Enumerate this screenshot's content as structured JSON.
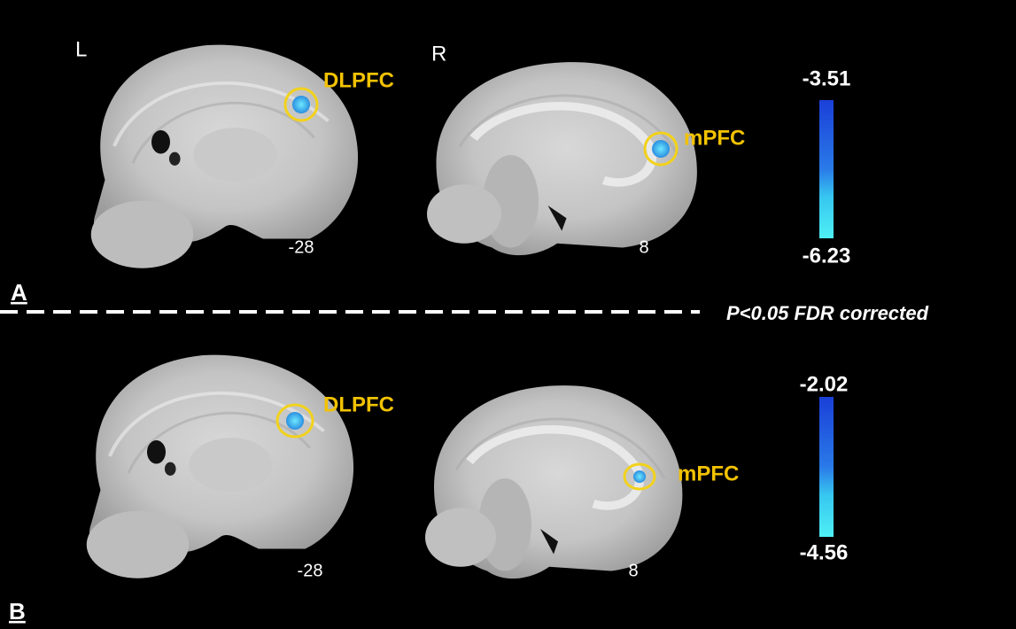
{
  "panels": [
    {
      "label": "A",
      "slices": [
        {
          "side": "L",
          "coordinate": -28,
          "region": "DLPFC"
        },
        {
          "side": "R",
          "coordinate": 8,
          "region": "mPFC"
        }
      ],
      "colorbar": {
        "max": -3.51,
        "min": -6.23
      }
    },
    {
      "label": "B",
      "slices": [
        {
          "coordinate": -28,
          "region": "DLPFC"
        },
        {
          "coordinate": 8,
          "region": "mPFC"
        }
      ],
      "colorbar": {
        "max": -2.02,
        "min": -4.56
      }
    }
  ],
  "threshold": "P<0.05  FDR corrected"
}
